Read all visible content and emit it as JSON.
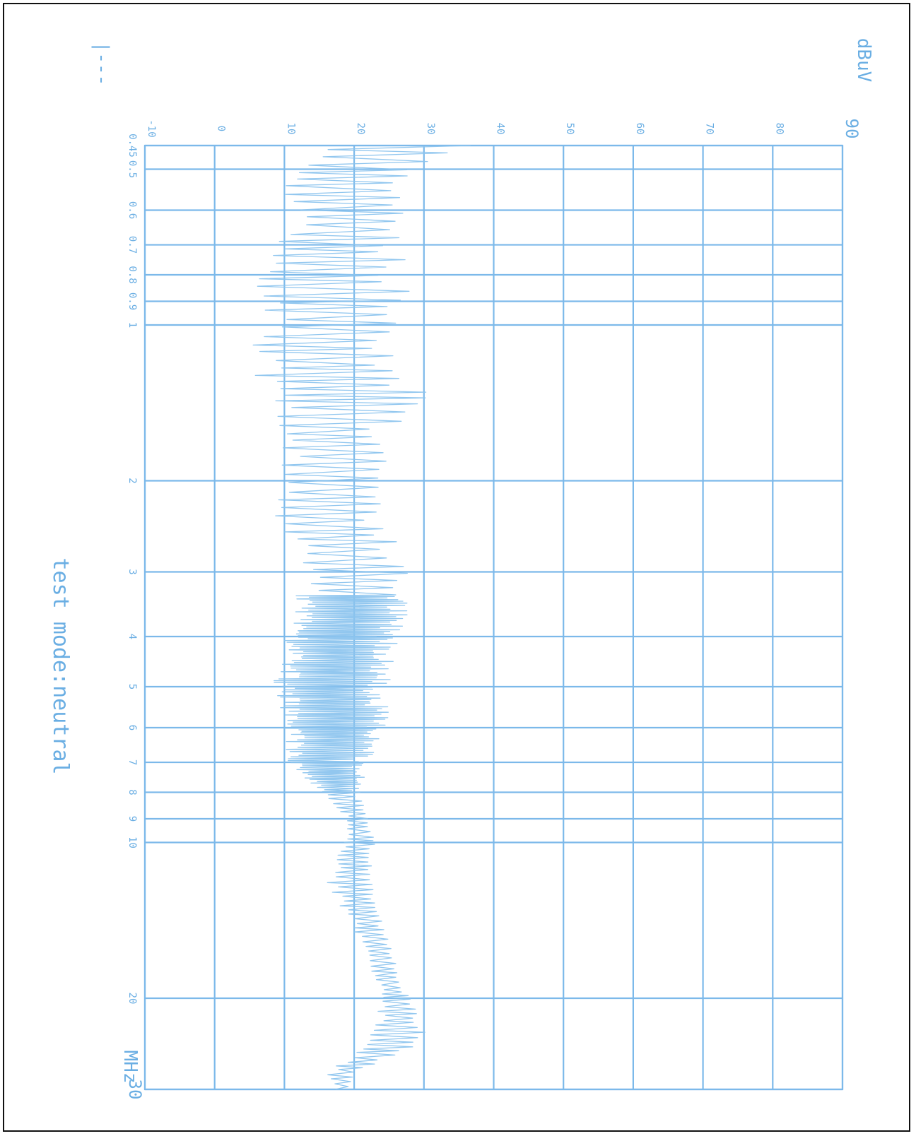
{
  "colors": {
    "ink": "#6aaee3",
    "grid": "#7cb9ea",
    "trace": "#8cc4ee",
    "frame": "#111111"
  },
  "page": {
    "note": "test mode:neutral",
    "corner_mark": "|---"
  },
  "chart_data": {
    "type": "line",
    "title": "",
    "unit_level": "dBuV",
    "unit_freq": "MHz",
    "level_axis": {
      "scale": "linear",
      "range": [
        -10,
        90
      ],
      "ticks": [
        -10,
        0,
        10,
        20,
        30,
        40,
        50,
        60,
        70,
        80,
        90
      ],
      "tick_labels": [
        "-10",
        "0",
        "10",
        "20",
        "30",
        "40",
        "50",
        "60",
        "70",
        "80",
        "90"
      ]
    },
    "freq_axis": {
      "scale": "log",
      "range": [
        0.45,
        30
      ],
      "ticks": [
        0.45,
        0.5,
        0.6,
        0.7,
        0.8,
        0.9,
        1,
        2,
        3,
        4,
        5,
        6,
        7,
        8,
        9,
        10,
        20,
        30
      ],
      "tick_labels": [
        "0.45",
        "0.5",
        "0.6",
        "0.7",
        "0.8",
        "0.9",
        "1",
        "2",
        "3",
        "4",
        "5",
        "6",
        "7",
        "8",
        "9",
        "10",
        "20",
        "30"
      ]
    },
    "grid": true,
    "series": [
      {
        "envelope": [
          {
            "f": 0.45,
            "min": 11,
            "max": 40
          },
          {
            "f": 0.5,
            "min": 10,
            "max": 29
          },
          {
            "f": 0.6,
            "min": 10,
            "max": 29
          },
          {
            "f": 0.7,
            "min": 8,
            "max": 28
          },
          {
            "f": 0.8,
            "min": 5,
            "max": 27
          },
          {
            "f": 0.9,
            "min": 6,
            "max": 29
          },
          {
            "f": 1.0,
            "min": 5,
            "max": 28
          },
          {
            "f": 1.2,
            "min": 5,
            "max": 27
          },
          {
            "f": 1.4,
            "min": 5,
            "max": 33
          },
          {
            "f": 1.6,
            "min": 6,
            "max": 26
          },
          {
            "f": 1.8,
            "min": 9,
            "max": 26
          },
          {
            "f": 2.0,
            "min": 10,
            "max": 25
          },
          {
            "f": 2.4,
            "min": 8,
            "max": 25
          },
          {
            "f": 3.0,
            "min": 12,
            "max": 28
          },
          {
            "f": 3.5,
            "min": 11,
            "max": 28
          },
          {
            "f": 4.0,
            "min": 10,
            "max": 27
          },
          {
            "f": 5.0,
            "min": 8,
            "max": 25
          },
          {
            "f": 6.0,
            "min": 10,
            "max": 25
          },
          {
            "f": 7.0,
            "min": 10,
            "max": 22
          },
          {
            "f": 8.0,
            "min": 15,
            "max": 21
          },
          {
            "f": 9.0,
            "min": 19,
            "max": 22
          },
          {
            "f": 10.0,
            "min": 18,
            "max": 23
          },
          {
            "f": 12.0,
            "min": 16,
            "max": 23
          },
          {
            "f": 14.0,
            "min": 19,
            "max": 24
          },
          {
            "f": 17.0,
            "min": 22,
            "max": 26
          },
          {
            "f": 20.0,
            "min": 24,
            "max": 28
          },
          {
            "f": 24.0,
            "min": 22,
            "max": 31
          },
          {
            "f": 28.0,
            "min": 16,
            "max": 20
          },
          {
            "f": 30.0,
            "min": 17,
            "max": 19
          }
        ]
      }
    ]
  }
}
